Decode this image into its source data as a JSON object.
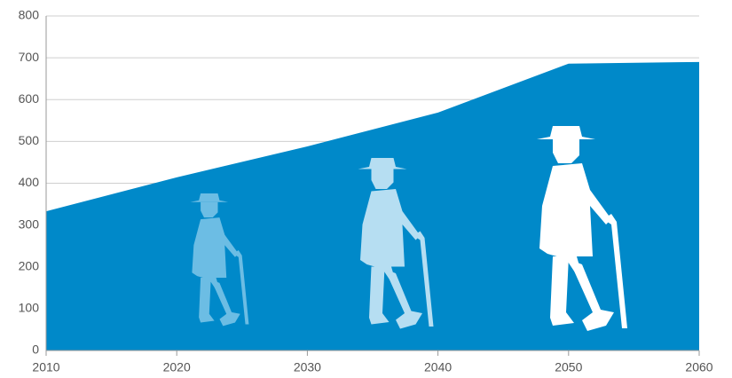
{
  "chart_data": {
    "type": "area",
    "x": [
      2010,
      2020,
      2030,
      2040,
      2050,
      2060
    ],
    "values": [
      333,
      414,
      488,
      569,
      686,
      690
    ],
    "color": "#0089c9",
    "xlim": [
      2010,
      2060
    ],
    "xticks": [
      2010,
      2020,
      2030,
      2040,
      2050,
      2060
    ],
    "ylim": [
      0,
      800
    ],
    "yticks": [
      0,
      100,
      200,
      300,
      400,
      500,
      600,
      700,
      800
    ],
    "grid": true
  }
}
